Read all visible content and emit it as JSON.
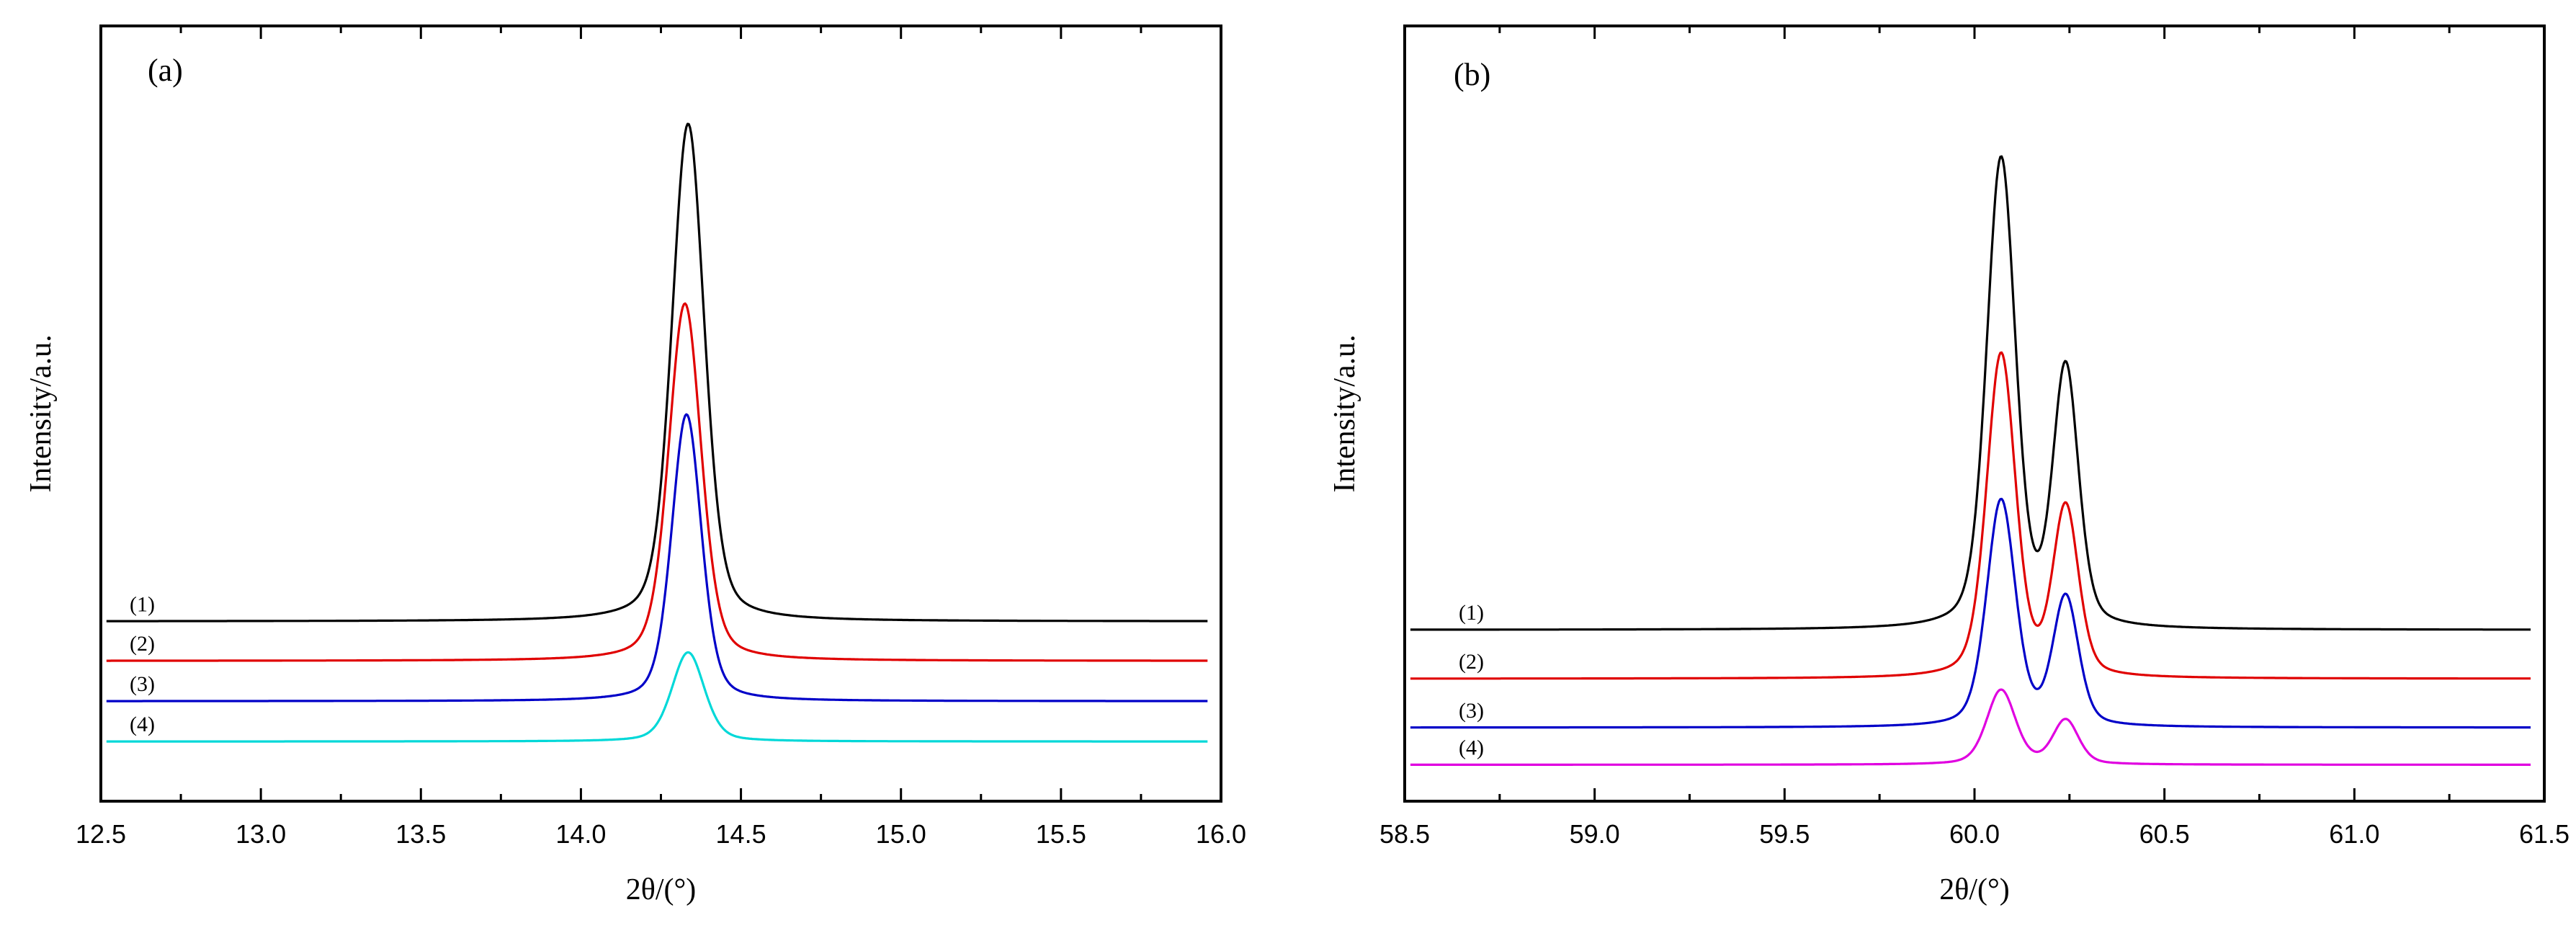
{
  "chart_data": [
    {
      "type": "line",
      "panel_label": "(a)",
      "xlabel": "2θ/(°)",
      "ylabel": "Intensity/a.u.",
      "xlim": [
        12.5,
        16.0
      ],
      "ylim": [
        0,
        1
      ],
      "x_ticks": [
        "12.5",
        "13.0",
        "13.5",
        "14.0",
        "14.5",
        "15.0",
        "15.5",
        "16.0"
      ],
      "y_ticks_shown": false,
      "series": [
        {
          "name": "(1)",
          "color": "#000000",
          "baseline": 0.232,
          "peaks": [
            {
              "center": 14.335,
              "height": 0.642,
              "width": 0.06
            }
          ]
        },
        {
          "name": "(2)",
          "color": "#e00000",
          "baseline": 0.181,
          "peaks": [
            {
              "center": 14.325,
              "height": 0.461,
              "width": 0.06
            }
          ]
        },
        {
          "name": "(3)",
          "color": "#0000c8",
          "baseline": 0.129,
          "peaks": [
            {
              "center": 14.33,
              "height": 0.37,
              "width": 0.055
            }
          ]
        },
        {
          "name": "(4)",
          "color": "#00d8d8",
          "baseline": 0.077,
          "peaks": [
            {
              "center": 14.335,
              "height": 0.115,
              "width": 0.06
            }
          ]
        }
      ]
    },
    {
      "type": "line",
      "panel_label": "(b)",
      "xlabel": "2θ/(°)",
      "ylabel": "Intensity/a.u.",
      "xlim": [
        58.5,
        61.5
      ],
      "ylim": [
        0,
        1
      ],
      "x_ticks": [
        "58.5",
        "59.0",
        "59.5",
        "60.0",
        "60.5",
        "61.0",
        "61.5"
      ],
      "y_ticks_shown": false,
      "series": [
        {
          "name": "(1)",
          "color": "#000000",
          "baseline": 0.221,
          "peaks": [
            {
              "center": 60.07,
              "height": 0.605,
              "width": 0.045
            },
            {
              "center": 60.24,
              "height": 0.333,
              "width": 0.04
            }
          ]
        },
        {
          "name": "(2)",
          "color": "#e00000",
          "baseline": 0.158,
          "peaks": [
            {
              "center": 60.07,
              "height": 0.417,
              "width": 0.045
            },
            {
              "center": 60.24,
              "height": 0.218,
              "width": 0.04
            }
          ]
        },
        {
          "name": "(3)",
          "color": "#0000c8",
          "baseline": 0.095,
          "peaks": [
            {
              "center": 60.07,
              "height": 0.292,
              "width": 0.045
            },
            {
              "center": 60.24,
              "height": 0.166,
              "width": 0.04
            }
          ]
        },
        {
          "name": "(4)",
          "color": "#e000e0",
          "baseline": 0.047,
          "peaks": [
            {
              "center": 60.07,
              "height": 0.096,
              "width": 0.045
            },
            {
              "center": 60.24,
              "height": 0.057,
              "width": 0.04
            }
          ]
        }
      ]
    }
  ]
}
